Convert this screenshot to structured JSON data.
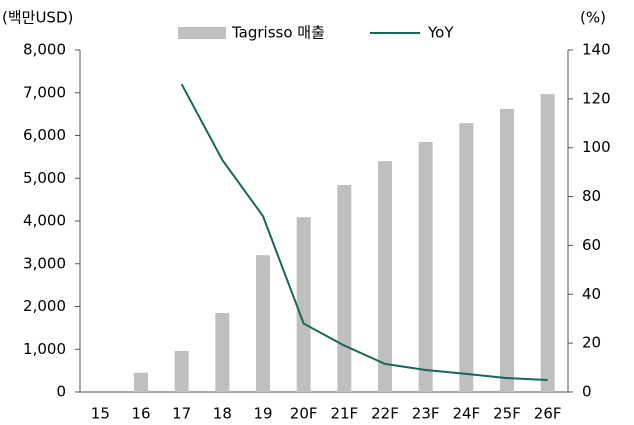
{
  "chart_data": {
    "type": "bar_line",
    "y_label": "(백만USD)",
    "y2_label": "(%)",
    "categories": [
      "15",
      "16",
      "17",
      "18",
      "19",
      "20F",
      "21F",
      "22F",
      "23F",
      "24F",
      "25F",
      "26F"
    ],
    "series": [
      {
        "name": "Tagrisso 매출",
        "type": "bar",
        "color": "#bfbfbf",
        "values": [
          null,
          450,
          960,
          1850,
          3200,
          4090,
          4840,
          5400,
          5850,
          6290,
          6620,
          6970
        ]
      },
      {
        "name": "YoY",
        "type": "line",
        "axis": "y2",
        "color": "#17675a",
        "values": [
          null,
          null,
          126,
          95,
          72,
          28,
          19,
          11.5,
          9,
          7.4,
          5.7,
          4.9
        ]
      }
    ],
    "ylim": [
      0,
      8000
    ],
    "yticks": [
      0,
      {
        "value": 1000,
        "label": "1,000"
      },
      {
        "value": 2000,
        "label": "2,000"
      },
      {
        "value": 3000,
        "label": "3,000"
      },
      {
        "value": 4000,
        "label": "4,000"
      },
      {
        "value": 5000,
        "label": "5,000"
      },
      {
        "value": 6000,
        "label": "6,000"
      },
      {
        "value": 7000,
        "label": "7,000"
      },
      {
        "value": 8000,
        "label": "8,000"
      }
    ],
    "y2lim": [
      0,
      140
    ],
    "y2ticks": [
      0,
      20,
      40,
      60,
      80,
      100,
      120,
      140
    ],
    "legend": "top"
  }
}
